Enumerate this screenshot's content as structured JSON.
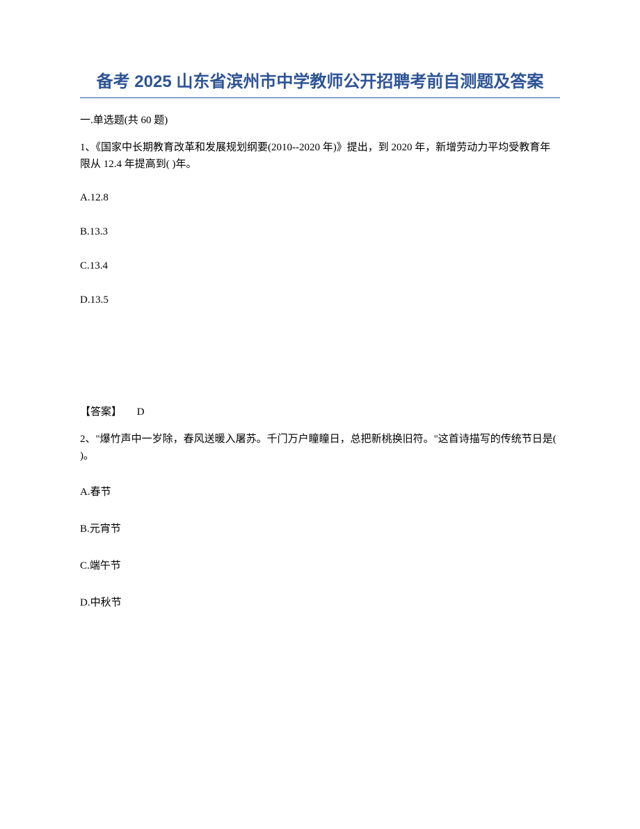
{
  "title": "备考 2025 山东省滨州市中学教师公开招聘考前自测题及答案",
  "section_header": "一.单选题(共 60 题)",
  "q1": {
    "text": "1、《国家中长期教育改革和发展规划纲要(2010--2020 年)》提出，到 2020 年，新增劳动力平均受教育年限从 12.4 年提高到(  )年。",
    "option_a": "A.12.8",
    "option_b": "B.13.3",
    "option_c": "C.13.4",
    "option_d": "D.13.5",
    "answer_label": "【答案】",
    "answer_value": "D"
  },
  "q2": {
    "text": "2、\"爆竹声中一岁除，春风送暖入屠苏。千门万户瞳瞳日，总把新桃换旧符。\"这首诗描写的传统节日是(  )。",
    "option_a": "A.春节",
    "option_b": "B.元宵节",
    "option_c": "C.端午节",
    "option_d": "D.中秋节"
  }
}
